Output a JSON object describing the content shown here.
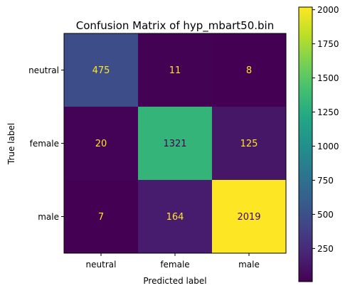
{
  "chart_data": {
    "type": "heatmap",
    "title": "Confusion Matrix of hyp_mbart50.bin",
    "xlabel": "Predicted label",
    "ylabel": "True label",
    "x_categories": [
      "neutral",
      "female",
      "male"
    ],
    "y_categories": [
      "neutral",
      "female",
      "male"
    ],
    "values": [
      [
        475,
        11,
        8
      ],
      [
        20,
        1321,
        125
      ],
      [
        7,
        164,
        2019
      ]
    ],
    "colormap": "viridis",
    "color_range": [
      7,
      2019
    ],
    "colorbar": {
      "ticks": [
        250,
        500,
        750,
        1000,
        1250,
        1500,
        1750,
        2000
      ],
      "tick_labels": [
        "250",
        "500",
        "750",
        "1000",
        "1250",
        "1500",
        "1750",
        "2000"
      ]
    },
    "label_colors": {
      "on_dark": "#fde725",
      "on_light": "#440154"
    }
  }
}
